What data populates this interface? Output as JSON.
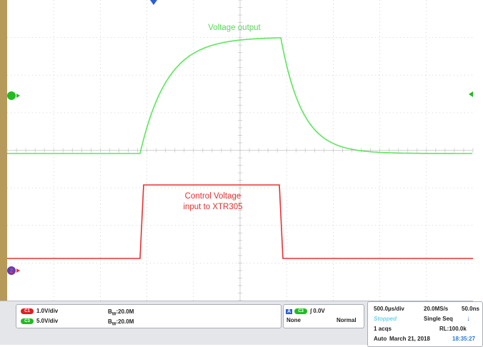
{
  "annotations": {
    "voltage_output": "Voltage output",
    "control_line1": "Control Voltage",
    "control_line2": "input to XTR305"
  },
  "markers": {
    "ch1": "1",
    "ch2": "2"
  },
  "channels": [
    {
      "id": "C1",
      "scale": "1.0V/div",
      "bandwidth": "20.0M",
      "bw_prefix": "B",
      "bw_sub": "W",
      "color": "#e02020"
    },
    {
      "id": "C3",
      "scale": "5.0V/div",
      "bandwidth": "20.0M",
      "bw_prefix": "B",
      "bw_sub": "W",
      "color": "#22bb22"
    }
  ],
  "trigger": {
    "mode_badge": "A",
    "source": "C3",
    "level": "0.0V",
    "coupling": "None",
    "type": "Normal"
  },
  "acquisition": {
    "timebase": "500.0µs/div",
    "sample_rate": "20.0MS/s",
    "resolution": "50.0ns",
    "status": "Stopped",
    "mode": "Single Seq",
    "acqs": "1 acqs",
    "record_length": "RL:100.0k",
    "auto": "Auto",
    "date": "March 21, 2018",
    "time": "18:35:27"
  },
  "colors": {
    "voltage_trace": "#5ce65c",
    "control_trace": "#e83030",
    "grid": "#c8c8c8"
  }
}
